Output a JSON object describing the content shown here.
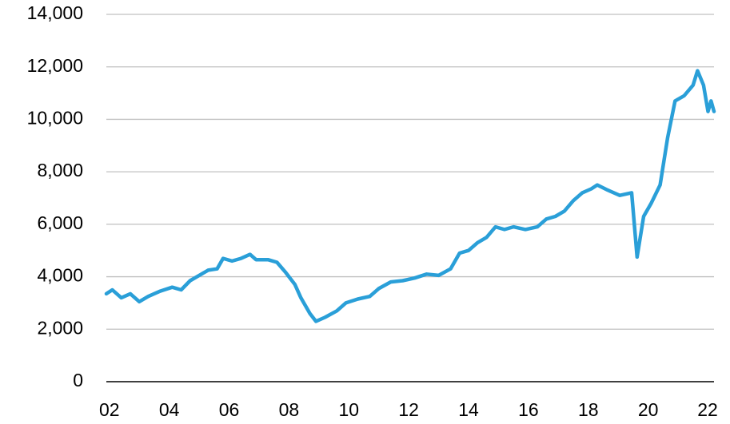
{
  "chart_data": {
    "type": "line",
    "series": [
      {
        "color": "#2a9fd8",
        "x": [
          2001.9,
          2002.1,
          2002.4,
          2002.7,
          2003.0,
          2003.3,
          2003.7,
          2004.1,
          2004.4,
          2004.7,
          2005.0,
          2005.3,
          2005.6,
          2005.8,
          2006.1,
          2006.4,
          2006.7,
          2006.9,
          2007.3,
          2007.6,
          2007.9,
          2008.2,
          2008.4,
          2008.7,
          2008.9,
          2009.2,
          2009.6,
          2009.9,
          2010.3,
          2010.7,
          2011.0,
          2011.4,
          2011.8,
          2012.2,
          2012.6,
          2013.0,
          2013.4,
          2013.7,
          2014.0,
          2014.3,
          2014.6,
          2014.9,
          2015.2,
          2015.5,
          2015.9,
          2016.3,
          2016.6,
          2016.9,
          2017.2,
          2017.5,
          2017.8,
          2018.1,
          2018.3,
          2018.65,
          2019.05,
          2019.45,
          2019.63,
          2019.85,
          2020.1,
          2020.4,
          2020.65,
          2020.9,
          2021.2,
          2021.5,
          2021.65,
          2021.85,
          2022.0,
          2022.1,
          2022.2
        ],
        "values": [
          3350,
          3500,
          3200,
          3350,
          3050,
          3250,
          3450,
          3600,
          3500,
          3850,
          4050,
          4250,
          4300,
          4700,
          4600,
          4700,
          4850,
          4650,
          4650,
          4550,
          4150,
          3700,
          3200,
          2600,
          2300,
          2450,
          2700,
          3000,
          3150,
          3250,
          3550,
          3800,
          3850,
          3950,
          4100,
          4050,
          4300,
          4900,
          5000,
          5300,
          5500,
          5900,
          5800,
          5900,
          5800,
          5900,
          6200,
          6300,
          6500,
          6900,
          7200,
          7350,
          7500,
          7300,
          7100,
          7200,
          4750,
          6300,
          6800,
          7500,
          9300,
          10700,
          10900,
          11300,
          11850,
          11300,
          10300,
          10700,
          10300
        ]
      }
    ],
    "xlim": [
      2001.9,
      2022.2
    ],
    "xticks": [
      {
        "value": 2002,
        "label": "02"
      },
      {
        "value": 2004,
        "label": "04"
      },
      {
        "value": 2006,
        "label": "06"
      },
      {
        "value": 2008,
        "label": "08"
      },
      {
        "value": 2010,
        "label": "10"
      },
      {
        "value": 2012,
        "label": "12"
      },
      {
        "value": 2014,
        "label": "14"
      },
      {
        "value": 2016,
        "label": "16"
      },
      {
        "value": 2018,
        "label": "18"
      },
      {
        "value": 2020,
        "label": "20"
      },
      {
        "value": 2022,
        "label": "22"
      }
    ],
    "ylim": [
      0,
      14000
    ],
    "yticks": [
      0,
      {
        "value": 2000,
        "label": "2,000"
      },
      {
        "value": 4000,
        "label": "4,000"
      },
      {
        "value": 6000,
        "label": "6,000"
      },
      {
        "value": 8000,
        "label": "8,000"
      },
      {
        "value": 10000,
        "label": "10,000"
      },
      {
        "value": 12000,
        "label": "12,000"
      },
      {
        "value": 14000,
        "label": "14,000"
      }
    ],
    "grid": true
  }
}
